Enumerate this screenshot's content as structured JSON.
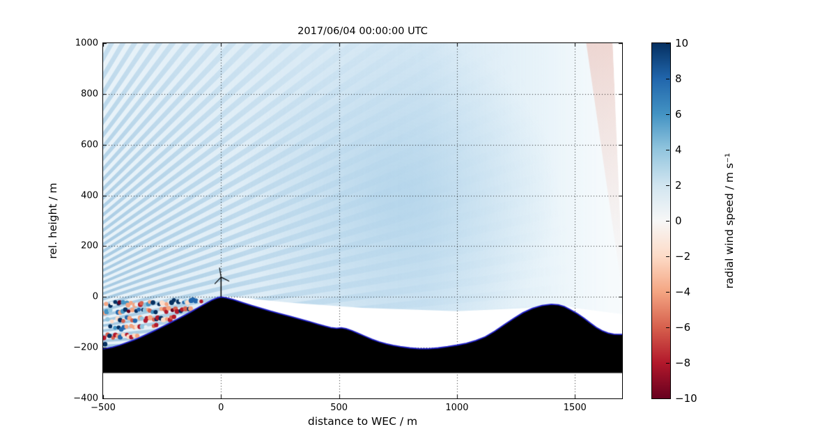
{
  "figure": {
    "background": "#ffffff"
  },
  "chart_data": {
    "type": "heatmap",
    "title": "2017/06/04 00:00:00 UTC",
    "xlabel": "distance to WEC / m",
    "ylabel": "rel. height / m",
    "xlim": [
      -500,
      1700
    ],
    "ylim": [
      -400,
      1000
    ],
    "xticks": [
      -500,
      0,
      500,
      1000,
      1500
    ],
    "xtick_labels": [
      "−500",
      "0",
      "500",
      "1000",
      "1500"
    ],
    "yticks": [
      -400,
      -200,
      0,
      200,
      400,
      600,
      800,
      1000
    ],
    "ytick_labels": [
      "−400",
      "−200",
      "0",
      "200",
      "400",
      "600",
      "800",
      "1000"
    ],
    "grid": true,
    "colorbar": {
      "label": "radial wind speed / m s⁻¹",
      "lim": [
        -10,
        10
      ],
      "ticks": [
        10,
        8,
        6,
        4,
        2,
        0,
        -2,
        -4,
        -6,
        -8,
        -10
      ],
      "tick_labels": [
        "10",
        "8",
        "6",
        "4",
        "2",
        "0",
        "−2",
        "−4",
        "−6",
        "−8",
        "−10"
      ],
      "cmap": "RdBu",
      "cmap_stops": [
        [
          0.0,
          "#67001f"
        ],
        [
          0.1,
          "#b2182b"
        ],
        [
          0.2,
          "#d6604d"
        ],
        [
          0.3,
          "#f4a582"
        ],
        [
          0.4,
          "#fddbc7"
        ],
        [
          0.5,
          "#f7f7f7"
        ],
        [
          0.6,
          "#d1e5f0"
        ],
        [
          0.7,
          "#92c5de"
        ],
        [
          0.8,
          "#4393c3"
        ],
        [
          0.9,
          "#2166ac"
        ],
        [
          1.0,
          "#053061"
        ]
      ]
    },
    "scan": {
      "origin_m": [
        -1200,
        -220
      ],
      "min_elevation_deg": 1.8,
      "beam_step_deg": 1.62,
      "beam_width_deg": 0.8,
      "beam_count": 37,
      "max_range_m": 3400,
      "beam_color": "#82b2d4",
      "field_color": "#bcdaee",
      "typical_speed_ms": 3,
      "enhanced_region": {
        "center_m": [
          750,
          400
        ],
        "radius_m": 680,
        "color": "#96c4e2"
      }
    },
    "shadow_boundary": [
      [
        -5,
        5
      ],
      [
        300,
        -23
      ],
      [
        600,
        -43
      ],
      [
        1000,
        -56
      ],
      [
        1300,
        -44
      ],
      [
        1420,
        -26
      ],
      [
        1500,
        -44
      ],
      [
        1700,
        -68
      ]
    ],
    "right_edge_negative_patch": {
      "polygon": [
        [
          1548,
          1000
        ],
        [
          1660,
          1000
        ],
        [
          1700,
          120
        ],
        [
          1700,
          20
        ]
      ],
      "color": "#e9bab0",
      "white_corner": [
        [
          1660,
          1000
        ],
        [
          1700,
          1000
        ],
        [
          1700,
          130
        ]
      ]
    },
    "terrain": {
      "fill": "#000000",
      "outline_color": "#2222cc",
      "base_height_m": -300,
      "points": [
        [
          -500,
          -205
        ],
        [
          -460,
          -198
        ],
        [
          -430,
          -190
        ],
        [
          -400,
          -180
        ],
        [
          -370,
          -170
        ],
        [
          -340,
          -158
        ],
        [
          -310,
          -145
        ],
        [
          -280,
          -132
        ],
        [
          -250,
          -118
        ],
        [
          -220,
          -104
        ],
        [
          -190,
          -90
        ],
        [
          -160,
          -75
        ],
        [
          -130,
          -60
        ],
        [
          -100,
          -44
        ],
        [
          -70,
          -28
        ],
        [
          -40,
          -13
        ],
        [
          -20,
          -5
        ],
        [
          0,
          0
        ],
        [
          20,
          -3
        ],
        [
          50,
          -10
        ],
        [
          90,
          -22
        ],
        [
          130,
          -34
        ],
        [
          170,
          -45
        ],
        [
          210,
          -56
        ],
        [
          250,
          -66
        ],
        [
          290,
          -76
        ],
        [
          330,
          -86
        ],
        [
          370,
          -96
        ],
        [
          410,
          -107
        ],
        [
          440,
          -115
        ],
        [
          465,
          -121
        ],
        [
          490,
          -124
        ],
        [
          510,
          -122
        ],
        [
          530,
          -125
        ],
        [
          555,
          -133
        ],
        [
          580,
          -143
        ],
        [
          610,
          -155
        ],
        [
          640,
          -167
        ],
        [
          670,
          -177
        ],
        [
          700,
          -185
        ],
        [
          730,
          -191
        ],
        [
          760,
          -196
        ],
        [
          800,
          -201
        ],
        [
          840,
          -204
        ],
        [
          880,
          -204
        ],
        [
          920,
          -201
        ],
        [
          960,
          -196
        ],
        [
          1000,
          -190
        ],
        [
          1040,
          -183
        ],
        [
          1080,
          -172
        ],
        [
          1120,
          -157
        ],
        [
          1160,
          -135
        ],
        [
          1200,
          -110
        ],
        [
          1240,
          -85
        ],
        [
          1280,
          -62
        ],
        [
          1320,
          -45
        ],
        [
          1360,
          -34
        ],
        [
          1400,
          -29
        ],
        [
          1430,
          -31
        ],
        [
          1455,
          -38
        ],
        [
          1480,
          -50
        ],
        [
          1510,
          -66
        ],
        [
          1540,
          -85
        ],
        [
          1565,
          -103
        ],
        [
          1590,
          -120
        ],
        [
          1615,
          -133
        ],
        [
          1640,
          -142
        ],
        [
          1665,
          -147
        ],
        [
          1700,
          -148
        ]
      ]
    },
    "turbine": {
      "x_m": 0,
      "hub_height_m": 78,
      "rotor_radius_m": 38,
      "blade_angles_deg": [
        100,
        225,
        335
      ]
    },
    "noise_scatter": {
      "x_start_m": -495,
      "spacing_m": 11.5,
      "row_heights_m": [
        -29,
        -60,
        -92,
        -124,
        -156,
        -188
      ],
      "row_slope": 0.03,
      "dot_radius_px": 2.6,
      "palette": [
        "#67001f",
        "#b2182b",
        "#b2182b",
        "#d6604d",
        "#d6604d",
        "#f4a582",
        "#f4a582",
        "#fddbc7",
        "#e8eef2",
        "#92c5de",
        "#4393c3",
        "#2166ac",
        "#2166ac",
        "#053061",
        "#053061"
      ]
    }
  }
}
